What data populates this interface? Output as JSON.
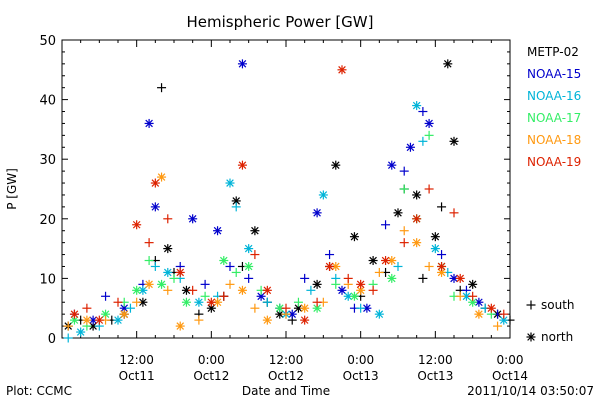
{
  "chart_data": {
    "type": "scatter",
    "title": "Hemispheric Power [GW]",
    "xlabel": "Date and Time",
    "ylabel": "P [GW]",
    "ylim": [
      0,
      50
    ],
    "yticks": [
      0,
      10,
      20,
      30,
      40,
      50
    ],
    "xlim": [
      0,
      72
    ],
    "x_unit": "hours since 2011-10-11 00:00",
    "xticks": [
      {
        "x": 12,
        "time": "12:00",
        "date": "Oct11"
      },
      {
        "x": 24,
        "time": "0:00",
        "date": "Oct12"
      },
      {
        "x": 36,
        "time": "12:00",
        "date": "Oct12"
      },
      {
        "x": 48,
        "time": "0:00",
        "date": "Oct13"
      },
      {
        "x": 60,
        "time": "12:00",
        "date": "Oct13"
      },
      {
        "x": 72,
        "time": "0:00",
        "date": "Oct14"
      }
    ],
    "legend_placement": "right",
    "hemisphere_legend": [
      {
        "marker": "+",
        "label": "south"
      },
      {
        "marker": "*",
        "label": "north"
      }
    ],
    "series": [
      {
        "name": "METP-02",
        "color": "#000000",
        "points": [
          [
            1,
            "n",
            2
          ],
          [
            3,
            "s",
            3
          ],
          [
            5,
            "n",
            2
          ],
          [
            8,
            "s",
            3
          ],
          [
            10,
            "n",
            4
          ],
          [
            13,
            "n",
            6
          ],
          [
            15,
            "s",
            13
          ],
          [
            16,
            "s",
            42
          ],
          [
            17,
            "n",
            15
          ],
          [
            18,
            "s",
            11
          ],
          [
            20,
            "n",
            8
          ],
          [
            22,
            "s",
            4
          ],
          [
            24,
            "n",
            5
          ],
          [
            26,
            "s",
            7
          ],
          [
            28,
            "n",
            23
          ],
          [
            29,
            "s",
            12
          ],
          [
            31,
            "n",
            18
          ],
          [
            33,
            "s",
            6
          ],
          [
            35,
            "n",
            4
          ],
          [
            37,
            "s",
            3
          ],
          [
            38,
            "n",
            5
          ],
          [
            41,
            "n",
            9
          ],
          [
            43,
            "s",
            12
          ],
          [
            44,
            "n",
            29
          ],
          [
            47,
            "n",
            17
          ],
          [
            48,
            "s",
            7
          ],
          [
            50,
            "n",
            13
          ],
          [
            52,
            "s",
            11
          ],
          [
            54,
            "n",
            21
          ],
          [
            55,
            "s",
            25
          ],
          [
            57,
            "n",
            24
          ],
          [
            58,
            "s",
            10
          ],
          [
            60,
            "n",
            17
          ],
          [
            61,
            "s",
            22
          ],
          [
            62,
            "n",
            46
          ],
          [
            63,
            "n",
            33
          ],
          [
            64,
            "s",
            8
          ],
          [
            66,
            "n",
            9
          ],
          [
            68,
            "s",
            5
          ],
          [
            70,
            "n",
            4
          ],
          [
            72,
            "s",
            3
          ]
        ]
      },
      {
        "name": "NOAA-15",
        "color": "#0000cc",
        "points": [
          [
            2,
            "s",
            4
          ],
          [
            5,
            "n",
            3
          ],
          [
            7,
            "s",
            7
          ],
          [
            10,
            "n",
            5
          ],
          [
            13,
            "s",
            9
          ],
          [
            14,
            "n",
            36
          ],
          [
            15,
            "n",
            22
          ],
          [
            19,
            "s",
            12
          ],
          [
            21,
            "n",
            20
          ],
          [
            23,
            "s",
            9
          ],
          [
            25,
            "n",
            18
          ],
          [
            27,
            "s",
            12
          ],
          [
            29,
            "n",
            46
          ],
          [
            30,
            "s",
            10
          ],
          [
            32,
            "n",
            7
          ],
          [
            35,
            "s",
            5
          ],
          [
            37,
            "n",
            4
          ],
          [
            39,
            "s",
            10
          ],
          [
            41,
            "n",
            21
          ],
          [
            43,
            "s",
            14
          ],
          [
            45,
            "n",
            8
          ],
          [
            47,
            "s",
            5
          ],
          [
            49,
            "n",
            5
          ],
          [
            52,
            "s",
            19
          ],
          [
            53,
            "n",
            29
          ],
          [
            55,
            "s",
            28
          ],
          [
            56,
            "n",
            32
          ],
          [
            58,
            "s",
            38
          ],
          [
            59,
            "n",
            36
          ],
          [
            61,
            "s",
            14
          ],
          [
            63,
            "n",
            10
          ],
          [
            65,
            "s",
            8
          ],
          [
            67,
            "n",
            6
          ],
          [
            70,
            "s",
            4
          ]
        ]
      },
      {
        "name": "NOAA-16",
        "color": "#00b4d8",
        "points": [
          [
            1,
            "s",
            0
          ],
          [
            3,
            "n",
            1
          ],
          [
            6,
            "s",
            2
          ],
          [
            9,
            "n",
            3
          ],
          [
            11,
            "s",
            5
          ],
          [
            13,
            "n",
            8
          ],
          [
            15,
            "s",
            12
          ],
          [
            17,
            "n",
            11
          ],
          [
            19,
            "s",
            10
          ],
          [
            22,
            "n",
            6
          ],
          [
            25,
            "s",
            7
          ],
          [
            27,
            "n",
            26
          ],
          [
            28,
            "s",
            22
          ],
          [
            30,
            "n",
            15
          ],
          [
            33,
            "s",
            6
          ],
          [
            36,
            "n",
            4
          ],
          [
            40,
            "s",
            8
          ],
          [
            42,
            "n",
            24
          ],
          [
            44,
            "s",
            10
          ],
          [
            46,
            "n",
            7
          ],
          [
            48,
            "s",
            5
          ],
          [
            51,
            "n",
            4
          ],
          [
            54,
            "s",
            12
          ],
          [
            57,
            "n",
            39
          ],
          [
            58,
            "s",
            33
          ],
          [
            60,
            "n",
            15
          ],
          [
            62,
            "s",
            11
          ],
          [
            65,
            "n",
            7
          ],
          [
            68,
            "s",
            5
          ],
          [
            71,
            "n",
            3
          ]
        ]
      },
      {
        "name": "NOAA-17",
        "color": "#33ee66",
        "points": [
          [
            2,
            "n",
            3
          ],
          [
            4,
            "s",
            2
          ],
          [
            7,
            "n",
            4
          ],
          [
            10,
            "s",
            6
          ],
          [
            12,
            "n",
            8
          ],
          [
            14,
            "s",
            13
          ],
          [
            16,
            "n",
            9
          ],
          [
            18,
            "s",
            10
          ],
          [
            20,
            "n",
            6
          ],
          [
            23,
            "s",
            7
          ],
          [
            26,
            "n",
            13
          ],
          [
            28,
            "s",
            11
          ],
          [
            30,
            "n",
            12
          ],
          [
            32,
            "s",
            8
          ],
          [
            35,
            "n",
            5
          ],
          [
            38,
            "s",
            6
          ],
          [
            41,
            "n",
            5
          ],
          [
            44,
            "s",
            9
          ],
          [
            47,
            "n",
            7
          ],
          [
            50,
            "s",
            9
          ],
          [
            53,
            "n",
            10
          ],
          [
            55,
            "s",
            25
          ],
          [
            57,
            "n",
            20
          ],
          [
            59,
            "s",
            34
          ],
          [
            61,
            "n",
            12
          ],
          [
            63,
            "s",
            7
          ],
          [
            66,
            "n",
            6
          ],
          [
            69,
            "s",
            4
          ]
        ]
      },
      {
        "name": "NOAA-18",
        "color": "#ff9911",
        "points": [
          [
            1,
            "s",
            2
          ],
          [
            4,
            "n",
            3
          ],
          [
            7,
            "s",
            3
          ],
          [
            10,
            "n",
            4
          ],
          [
            12,
            "s",
            6
          ],
          [
            14,
            "n",
            9
          ],
          [
            16,
            "n",
            27
          ],
          [
            17,
            "s",
            8
          ],
          [
            19,
            "n",
            2
          ],
          [
            22,
            "s",
            3
          ],
          [
            25,
            "n",
            6
          ],
          [
            27,
            "s",
            9
          ],
          [
            29,
            "n",
            8
          ],
          [
            31,
            "s",
            5
          ],
          [
            33,
            "n",
            3
          ],
          [
            36,
            "s",
            4
          ],
          [
            39,
            "n",
            5
          ],
          [
            42,
            "s",
            6
          ],
          [
            44,
            "n",
            12
          ],
          [
            46,
            "s",
            9
          ],
          [
            48,
            "n",
            8
          ],
          [
            51,
            "s",
            11
          ],
          [
            53,
            "n",
            13
          ],
          [
            55,
            "s",
            18
          ],
          [
            57,
            "n",
            16
          ],
          [
            59,
            "s",
            12
          ],
          [
            61,
            "n",
            11
          ],
          [
            64,
            "s",
            7
          ],
          [
            67,
            "n",
            4
          ],
          [
            70,
            "s",
            2
          ]
        ]
      },
      {
        "name": "NOAA-19",
        "color": "#dd2200",
        "points": [
          [
            2,
            "n",
            4
          ],
          [
            4,
            "s",
            5
          ],
          [
            6,
            "n",
            3
          ],
          [
            9,
            "s",
            6
          ],
          [
            12,
            "n",
            19
          ],
          [
            14,
            "s",
            16
          ],
          [
            15,
            "n",
            26
          ],
          [
            17,
            "s",
            20
          ],
          [
            19,
            "n",
            11
          ],
          [
            21,
            "s",
            8
          ],
          [
            24,
            "n",
            6
          ],
          [
            26,
            "s",
            7
          ],
          [
            29,
            "n",
            29
          ],
          [
            31,
            "s",
            14
          ],
          [
            33,
            "n",
            8
          ],
          [
            36,
            "s",
            5
          ],
          [
            39,
            "n",
            3
          ],
          [
            41,
            "s",
            6
          ],
          [
            43,
            "n",
            12
          ],
          [
            45,
            "n",
            45
          ],
          [
            46,
            "s",
            10
          ],
          [
            48,
            "n",
            9
          ],
          [
            50,
            "s",
            8
          ],
          [
            52,
            "n",
            13
          ],
          [
            55,
            "s",
            16
          ],
          [
            57,
            "n",
            20
          ],
          [
            59,
            "s",
            25
          ],
          [
            61,
            "n",
            12
          ],
          [
            63,
            "s",
            21
          ],
          [
            64,
            "n",
            10
          ],
          [
            66,
            "s",
            7
          ],
          [
            69,
            "n",
            5
          ],
          [
            71,
            "s",
            4
          ]
        ]
      }
    ]
  },
  "footer": {
    "plot_credit": "Plot: CCMC",
    "timestamp": "2011/10/14 03:50:07"
  }
}
